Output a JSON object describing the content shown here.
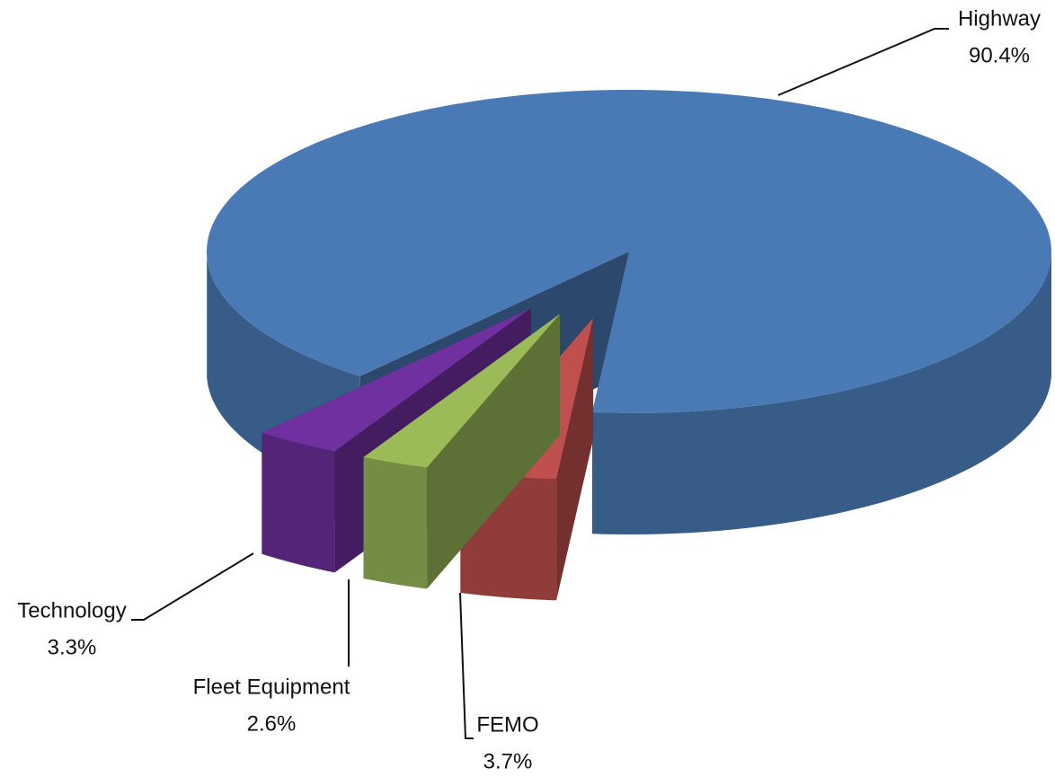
{
  "chart_data": {
    "type": "pie3d",
    "categories": [
      "FEMO",
      "Fleet Equipment",
      "Technology",
      "Highway"
    ],
    "values": [
      3.7,
      2.6,
      3.3,
      90.4
    ],
    "value_labels": [
      "3.7%",
      "2.6%",
      "3.3%",
      "90.4%"
    ],
    "colors": [
      "#c0504d",
      "#9bbb59",
      "#7030a0",
      "#4a7ab5"
    ]
  }
}
